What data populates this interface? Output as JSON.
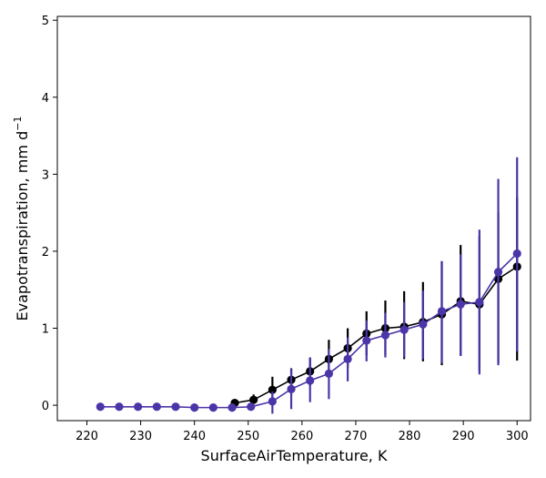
{
  "chart_data": {
    "type": "line",
    "title": "",
    "xlabel": "SurfaceAirTemperature,  K",
    "ylabel": "Evapotranspiration,  mm d",
    "ylabel_sup": "−1",
    "xlim": [
      214.5,
      302.5
    ],
    "ylim": [
      -0.2,
      5.05
    ],
    "xticks": [
      220,
      230,
      240,
      250,
      260,
      270,
      280,
      290,
      300
    ],
    "yticks": [
      0,
      1,
      2,
      3,
      4,
      5
    ],
    "grid": false,
    "legend": "none",
    "series": [
      {
        "name": "black",
        "color": "#000000",
        "x": [
          247.5,
          251,
          254.5,
          258,
          261.5,
          265,
          268.5,
          272,
          275.5,
          279,
          282.5,
          286,
          289.5,
          293,
          296.5,
          300
        ],
        "y": [
          0.03,
          0.07,
          0.2,
          0.33,
          0.44,
          0.6,
          0.74,
          0.93,
          1.0,
          1.02,
          1.08,
          1.18,
          1.35,
          1.31,
          1.64,
          1.8
        ],
        "err_low": [
          0.0,
          0.02,
          0.04,
          0.15,
          0.25,
          0.35,
          0.48,
          0.65,
          0.65,
          0.6,
          0.57,
          0.52,
          0.65,
          0.45,
          0.55,
          0.58
        ],
        "err_high": [
          0.05,
          0.14,
          0.37,
          0.48,
          0.62,
          0.85,
          1.0,
          1.22,
          1.36,
          1.48,
          1.6,
          1.87,
          2.08,
          2.2,
          2.5,
          2.7
        ]
      },
      {
        "name": "purple",
        "color": "#4b35a8",
        "x": [
          222.5,
          226,
          229.5,
          233,
          236.5,
          240,
          243.5,
          247,
          250.5,
          254.5,
          258,
          261.5,
          265,
          268.5,
          272,
          275.5,
          279,
          282.5,
          286,
          289.5,
          293,
          296.5,
          300
        ],
        "y": [
          -0.02,
          -0.02,
          -0.02,
          -0.02,
          -0.02,
          -0.03,
          -0.03,
          -0.03,
          -0.02,
          0.05,
          0.21,
          0.32,
          0.41,
          0.6,
          0.84,
          0.91,
          0.98,
          1.05,
          1.22,
          1.31,
          1.34,
          1.73,
          1.97
        ],
        "err_low": [
          -0.02,
          -0.02,
          -0.02,
          -0.02,
          -0.02,
          -0.03,
          -0.03,
          -0.03,
          -0.02,
          -0.11,
          -0.05,
          0.04,
          0.08,
          0.31,
          0.57,
          0.62,
          0.62,
          0.6,
          0.55,
          0.64,
          0.4,
          0.52,
          0.7
        ],
        "err_high": [
          -0.02,
          -0.02,
          -0.02,
          -0.02,
          -0.02,
          -0.03,
          -0.03,
          -0.03,
          -0.02,
          0.18,
          0.47,
          0.62,
          0.73,
          0.88,
          1.1,
          1.2,
          1.34,
          1.49,
          1.87,
          1.96,
          2.28,
          2.94,
          3.22
        ]
      }
    ]
  }
}
